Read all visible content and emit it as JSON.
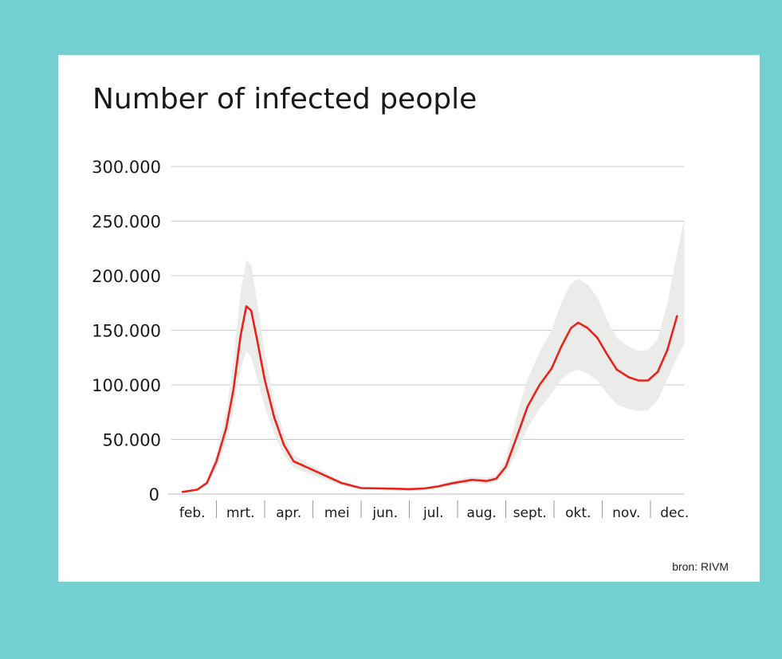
{
  "chart_data": {
    "type": "area",
    "title": "Number of infected people",
    "xlabel": "",
    "ylabel": "",
    "categories": [
      "feb.",
      "mrt.",
      "apr.",
      "mei",
      "jun.",
      "jul.",
      "aug.",
      "sept.",
      "okt.",
      "nov.",
      "dec."
    ],
    "y_ticks": [
      "300.000",
      "250.000",
      "200.000",
      "150.000",
      "100.000",
      "50.000",
      "0"
    ],
    "ylim": [
      0,
      300000
    ],
    "xlim": [
      0,
      11
    ],
    "grid": true,
    "legend": "none",
    "line_color": "#e8231c",
    "band_color": "#ebebe9",
    "series": [
      {
        "values": [
          [
            0.3,
            2000
          ],
          [
            0.6,
            4000
          ],
          [
            0.8,
            10000
          ],
          [
            1.0,
            30000
          ],
          [
            1.2,
            60000
          ],
          [
            1.35,
            95000
          ],
          [
            1.5,
            145000
          ],
          [
            1.62,
            172000
          ],
          [
            1.72,
            168000
          ],
          [
            1.85,
            140000
          ],
          [
            2.0,
            105000
          ],
          [
            2.2,
            70000
          ],
          [
            2.4,
            45000
          ],
          [
            2.6,
            30000
          ],
          [
            2.9,
            24000
          ],
          [
            3.2,
            18000
          ],
          [
            3.6,
            10000
          ],
          [
            4.0,
            5500
          ],
          [
            4.5,
            5000
          ],
          [
            5.0,
            4500
          ],
          [
            5.3,
            5000
          ],
          [
            5.6,
            7000
          ],
          [
            5.9,
            10000
          ],
          [
            6.3,
            13000
          ],
          [
            6.6,
            12000
          ],
          [
            6.8,
            14000
          ],
          [
            7.0,
            25000
          ],
          [
            7.25,
            55000
          ],
          [
            7.45,
            80000
          ],
          [
            7.7,
            100000
          ],
          [
            7.95,
            115000
          ],
          [
            8.15,
            135000
          ],
          [
            8.35,
            152000
          ],
          [
            8.5,
            157000
          ],
          [
            8.7,
            152000
          ],
          [
            8.9,
            143000
          ],
          [
            9.1,
            128000
          ],
          [
            9.3,
            114000
          ],
          [
            9.55,
            107000
          ],
          [
            9.75,
            104000
          ],
          [
            9.95,
            104000
          ],
          [
            10.15,
            112000
          ],
          [
            10.35,
            132000
          ],
          [
            10.55,
            163000
          ]
        ],
        "band_upper": [
          [
            0.3,
            2500
          ],
          [
            0.6,
            5000
          ],
          [
            0.8,
            12000
          ],
          [
            1.0,
            36000
          ],
          [
            1.2,
            75000
          ],
          [
            1.35,
            120000
          ],
          [
            1.5,
            185000
          ],
          [
            1.62,
            214000
          ],
          [
            1.72,
            210000
          ],
          [
            1.85,
            175000
          ],
          [
            2.0,
            130000
          ],
          [
            2.2,
            85000
          ],
          [
            2.4,
            55000
          ],
          [
            2.6,
            36000
          ],
          [
            2.9,
            28000
          ],
          [
            3.2,
            21000
          ],
          [
            3.6,
            12000
          ],
          [
            4.0,
            6500
          ],
          [
            4.5,
            6000
          ],
          [
            5.0,
            5500
          ],
          [
            5.3,
            6000
          ],
          [
            5.6,
            8500
          ],
          [
            5.9,
            12500
          ],
          [
            6.3,
            16000
          ],
          [
            6.6,
            15000
          ],
          [
            6.8,
            17000
          ],
          [
            7.0,
            32000
          ],
          [
            7.25,
            75000
          ],
          [
            7.45,
            105000
          ],
          [
            7.7,
            130000
          ],
          [
            7.95,
            150000
          ],
          [
            8.15,
            175000
          ],
          [
            8.35,
            193000
          ],
          [
            8.5,
            197000
          ],
          [
            8.7,
            192000
          ],
          [
            8.9,
            180000
          ],
          [
            9.1,
            160000
          ],
          [
            9.3,
            143000
          ],
          [
            9.55,
            135000
          ],
          [
            9.75,
            131000
          ],
          [
            9.95,
            132000
          ],
          [
            10.15,
            142000
          ],
          [
            10.35,
            175000
          ],
          [
            10.55,
            220000
          ],
          [
            10.7,
            252000
          ]
        ],
        "band_lower": [
          [
            0.3,
            1500
          ],
          [
            0.6,
            3000
          ],
          [
            0.8,
            8000
          ],
          [
            1.0,
            24000
          ],
          [
            1.2,
            48000
          ],
          [
            1.35,
            75000
          ],
          [
            1.5,
            115000
          ],
          [
            1.62,
            131000
          ],
          [
            1.72,
            125000
          ],
          [
            1.85,
            105000
          ],
          [
            2.0,
            80000
          ],
          [
            2.2,
            55000
          ],
          [
            2.4,
            36000
          ],
          [
            2.6,
            24000
          ],
          [
            2.9,
            19000
          ],
          [
            3.2,
            14000
          ],
          [
            3.6,
            8000
          ],
          [
            4.0,
            4500
          ],
          [
            4.5,
            4000
          ],
          [
            5.0,
            3500
          ],
          [
            5.3,
            4000
          ],
          [
            5.6,
            5500
          ],
          [
            5.9,
            8000
          ],
          [
            6.3,
            10500
          ],
          [
            6.6,
            9500
          ],
          [
            6.8,
            11000
          ],
          [
            7.0,
            19000
          ],
          [
            7.25,
            40000
          ],
          [
            7.45,
            60000
          ],
          [
            7.7,
            78000
          ],
          [
            7.95,
            92000
          ],
          [
            8.15,
            105000
          ],
          [
            8.35,
            112000
          ],
          [
            8.5,
            114000
          ],
          [
            8.7,
            110000
          ],
          [
            8.9,
            104000
          ],
          [
            9.1,
            92000
          ],
          [
            9.3,
            82000
          ],
          [
            9.55,
            78000
          ],
          [
            9.75,
            76000
          ],
          [
            9.95,
            77000
          ],
          [
            10.15,
            86000
          ],
          [
            10.35,
            105000
          ],
          [
            10.55,
            125000
          ],
          [
            10.7,
            137000
          ]
        ]
      }
    ]
  },
  "source": "bron: RIVM"
}
